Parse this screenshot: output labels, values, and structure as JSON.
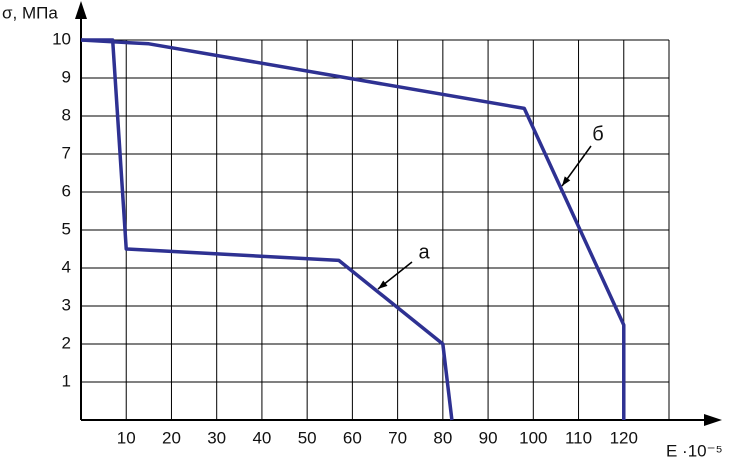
{
  "chart_data": {
    "type": "line",
    "y_label": "σ, МПа",
    "x_label": "E ·10⁻⁵",
    "xlim": [
      0,
      130
    ],
    "ylim": [
      0,
      10
    ],
    "xticks": [
      10,
      20,
      30,
      40,
      50,
      60,
      70,
      80,
      90,
      100,
      110,
      120
    ],
    "yticks": [
      1,
      2,
      3,
      4,
      5,
      6,
      7,
      8,
      9,
      10
    ],
    "grid": true,
    "series": [
      {
        "name": "а",
        "color": "#2e3192",
        "x": [
          0,
          7,
          10,
          57,
          80,
          82
        ],
        "values": [
          10,
          10,
          4.5,
          4.2,
          2,
          0
        ]
      },
      {
        "name": "б",
        "color": "#2e3192",
        "x": [
          0,
          15,
          98,
          120,
          120
        ],
        "values": [
          10,
          9.9,
          8.2,
          2.5,
          0
        ]
      }
    ]
  }
}
